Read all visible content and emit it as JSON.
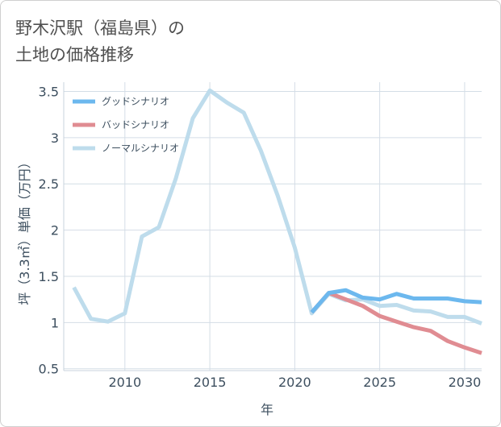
{
  "page": {
    "title_line1": "野木沢駅（福島県）の",
    "title_line2": "土地の価格推移"
  },
  "chart_data": {
    "type": "line",
    "xlabel": "年",
    "ylabel": "坪（3.3㎡）単価（万円）",
    "xlim": [
      2006.4,
      2031.0
    ],
    "ylim": [
      0.48,
      3.6
    ],
    "x_ticks": [
      2010,
      2015,
      2020,
      2025,
      2030
    ],
    "y_ticks": [
      0.5,
      1,
      1.5,
      2,
      2.5,
      3,
      3.5
    ],
    "x_tick_labels": [
      "2010",
      "2015",
      "2020",
      "2025",
      "2030"
    ],
    "y_tick_labels": [
      "0.5",
      "1",
      "1.5",
      "2",
      "2.5",
      "3",
      "3.5"
    ],
    "grid": true,
    "legend_position": "top-left",
    "series": [
      {
        "name": "グッドシナリオ",
        "color": "#6cb8ee",
        "x": [
          2021,
          2022,
          2023,
          2024,
          2025,
          2026,
          2027,
          2028,
          2029,
          2030,
          2031
        ],
        "values": [
          1.11,
          1.32,
          1.35,
          1.27,
          1.25,
          1.31,
          1.26,
          1.26,
          1.26,
          1.23,
          1.22
        ]
      },
      {
        "name": "バッドシナリオ",
        "color": "#e08c92",
        "x": [
          2021,
          2022,
          2023,
          2024,
          2025,
          2026,
          2027,
          2028,
          2029,
          2030,
          2031
        ],
        "values": [
          1.11,
          1.32,
          1.25,
          1.18,
          1.07,
          1.01,
          0.95,
          0.91,
          0.8,
          0.73,
          0.67
        ]
      },
      {
        "name": "ノーマルシナリオ",
        "color": "#bedcec",
        "x": [
          2007,
          2008,
          2009,
          2010,
          2011,
          2012,
          2013,
          2014,
          2015,
          2016,
          2017,
          2018,
          2019,
          2020,
          2021,
          2022,
          2023,
          2024,
          2025,
          2026,
          2027,
          2028,
          2029,
          2030,
          2031
        ],
        "values": [
          1.38,
          1.04,
          1.01,
          1.1,
          1.93,
          2.03,
          2.56,
          3.21,
          3.51,
          3.38,
          3.27,
          2.86,
          2.37,
          1.81,
          1.1,
          1.31,
          1.24,
          1.25,
          1.18,
          1.19,
          1.13,
          1.12,
          1.06,
          1.06,
          0.99
        ]
      }
    ]
  }
}
